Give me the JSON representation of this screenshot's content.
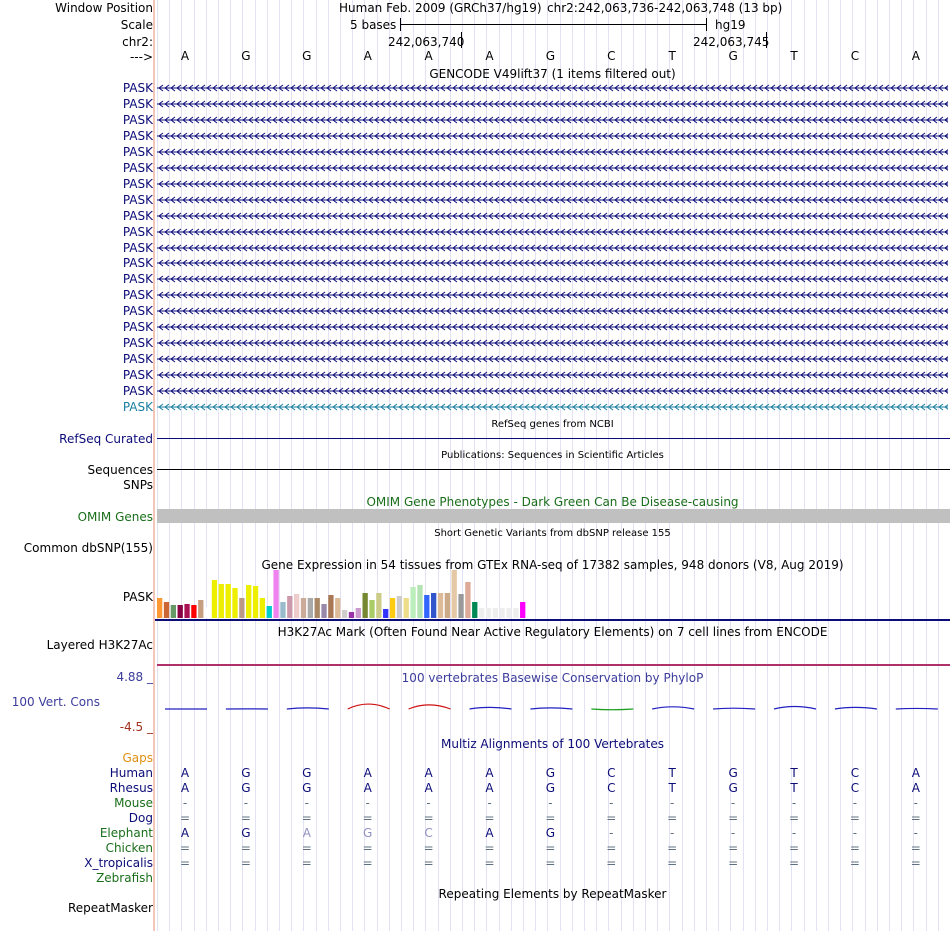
{
  "header": {
    "window_position_label": "Window Position",
    "scale_label": "Scale",
    "chr_label": "chr2:",
    "strand_label": "--->",
    "assembly": "Human Feb. 2009 (GRCh37/hg19)",
    "position": "chr2:242,063,736-242,063,748 (13 bp)",
    "scale_bar_text": "5 bases",
    "db": "hg19",
    "coord_left": "242,063,740",
    "coord_right": "242,063,745"
  },
  "sequence": [
    "A",
    "G",
    "G",
    "A",
    "A",
    "A",
    "G",
    "C",
    "T",
    "G",
    "T",
    "C",
    "A"
  ],
  "gencode": {
    "title": "GENCODE V49lift37 (1 items filtered out)",
    "rows": [
      "PASK",
      "PASK",
      "PASK",
      "PASK",
      "PASK",
      "PASK",
      "PASK",
      "PASK",
      "PASK",
      "PASK",
      "PASK",
      "PASK",
      "PASK",
      "PASK",
      "PASK",
      "PASK",
      "PASK",
      "PASK",
      "PASK",
      "PASK",
      "PASK"
    ],
    "row_color": "#0c0c78",
    "last_row_color": "#1a7ea0"
  },
  "refseq": {
    "title": "RefSeq genes from NCBI",
    "label": "RefSeq Curated"
  },
  "publications": {
    "title": "Publications: Sequences in Scientific Articles",
    "label": "Sequences"
  },
  "snps": {
    "label": "SNPs"
  },
  "omim": {
    "title": "OMIM Gene Phenotypes - Dark Green Can Be Disease-causing",
    "label": "OMIM Genes"
  },
  "dbsnp": {
    "title": "Short Genetic Variants from dbSNP release 155",
    "label": "Common dbSNP(155)"
  },
  "gtex": {
    "title": "Gene Expression in 54 tissues from GTEx RNA-seq of 17382 samples, 948 donors (V8, Aug 2019)",
    "label": "PASK",
    "max_value": 48,
    "values": [
      20,
      16,
      13,
      13,
      14,
      13,
      18,
      11,
      38,
      34,
      34,
      30,
      20,
      33,
      32,
      20,
      12,
      48,
      16,
      22,
      24,
      20,
      20,
      20,
      14,
      23,
      20,
      8,
      6,
      10,
      25,
      18,
      25,
      9,
      20,
      22,
      20,
      31,
      33,
      23,
      25,
      25,
      25,
      48,
      24,
      36,
      16,
      10,
      10,
      10,
      10,
      10,
      10,
      16
    ],
    "colors": [
      "#FF9933",
      "#CC6633",
      "#669966",
      "#880044",
      "#AA1155",
      "#FF0000",
      "#C79F80",
      "#FFFFFF",
      "#EEEE00",
      "#EEEE00",
      "#EEEE00",
      "#EEEE00",
      "#BB9988",
      "#EEEE00",
      "#EEEE00",
      "#EEEE00",
      "#00CCCC",
      "#EE82EE",
      "#99BBCC",
      "#CC99AA",
      "#EECCCC",
      "#CCAA99",
      "#AAAAAA",
      "#AA8866",
      "#9988AA",
      "#AA7755",
      "#DDBB99",
      "#D0CCCC",
      "#9933AA",
      "#CC99CC",
      "#778833",
      "#AACC66",
      "#CCCC88",
      "#3333FF",
      "#FFCC11",
      "#CCCCCC",
      "#EEDD88",
      "#BBEEBB",
      "#B3E2B3",
      "#3366FF",
      "#3355CC",
      "#DDBB99",
      "#CCAA88",
      "#E5C8A5",
      "#999999",
      "#DDAA99",
      "#008855",
      "#EEEEEE",
      "#EEEEEE",
      "#EEEEEE",
      "#EEEEEE",
      "#EEEEEE",
      "#EEEEEE",
      "#FF00FF"
    ]
  },
  "h3k27ac": {
    "title": "H3K27Ac Mark (Often Found Near Active Regulatory Elements) on 7 cell lines from ENCODE",
    "label": "Layered H3K27Ac"
  },
  "phylop": {
    "title": "100 vertebrates Basewise Conservation by PhyloP",
    "label": "100 Vert. Cons",
    "ymax_label": "4.88 _",
    "ymin_label": "-4.5 _",
    "values": [
      0.0,
      0.05,
      0.4,
      1.8,
      1.5,
      0.6,
      0.4,
      -0.6,
      0.8,
      0.3,
      0.9,
      0.6,
      0.2
    ],
    "ymax": 4.88,
    "ymin": -4.5
  },
  "multiz": {
    "title": "Multiz Alignments of 100 Vertebrates",
    "gaps_label": "Gaps",
    "species": [
      {
        "name": "Human",
        "color": "#0c0c78",
        "bases": [
          "A",
          "G",
          "G",
          "A",
          "A",
          "A",
          "G",
          "C",
          "T",
          "G",
          "T",
          "C",
          "A"
        ]
      },
      {
        "name": "Rhesus",
        "color": "#0c0c78",
        "bases": [
          "A",
          "G",
          "G",
          "A",
          "A",
          "A",
          "G",
          "C",
          "T",
          "G",
          "T",
          "C",
          "A"
        ]
      },
      {
        "name": "Mouse",
        "color": "#1a6e1a",
        "bases": [
          "-",
          "-",
          "-",
          "-",
          "-",
          "-",
          "-",
          "-",
          "-",
          "-",
          "-",
          "-",
          "-"
        ]
      },
      {
        "name": "Dog",
        "color": "#0c0c78",
        "bases": [
          "=",
          "=",
          "=",
          "=",
          "=",
          "=",
          "=",
          "=",
          "=",
          "=",
          "=",
          "=",
          "="
        ]
      },
      {
        "name": "Elephant",
        "color": "#1a6e1a",
        "bases": [
          "A",
          "G",
          "A",
          "G",
          "C",
          "A",
          "G",
          "-",
          "-",
          "-",
          "-",
          "-",
          "-"
        ]
      },
      {
        "name": "Chicken",
        "color": "#1a6e1a",
        "bases": [
          "=",
          "=",
          "=",
          "=",
          "=",
          "=",
          "=",
          "=",
          "=",
          "=",
          "=",
          "=",
          "="
        ]
      },
      {
        "name": "X_tropicalis",
        "color": "#0c0c78",
        "bases": [
          "=",
          "=",
          "=",
          "=",
          "=",
          "=",
          "=",
          "=",
          "=",
          "=",
          "=",
          "=",
          "="
        ]
      },
      {
        "name": "Zebrafish",
        "color": "#1a6e1a",
        "bases": []
      }
    ]
  },
  "repeatmasker": {
    "title": "Repeating Elements by RepeatMasker",
    "label": "RepeatMasker"
  }
}
